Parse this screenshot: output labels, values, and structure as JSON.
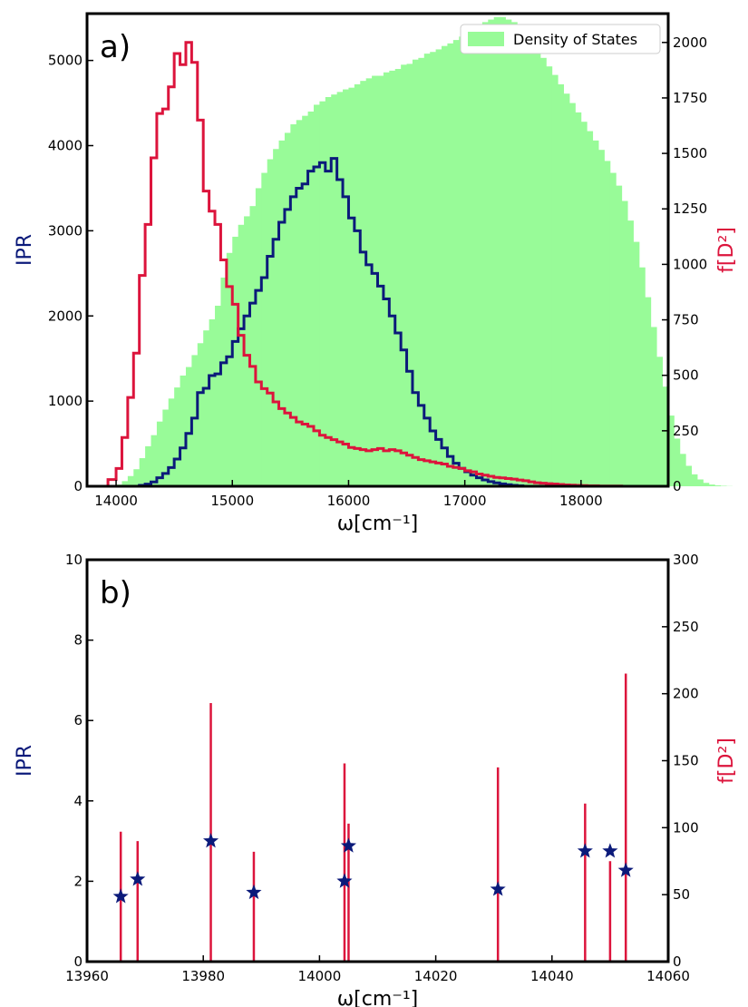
{
  "chart_data": [
    {
      "type": "bar",
      "panel_label": "a)",
      "xlabel": "ω[cm⁻¹]",
      "ylabel_left": "IPR",
      "ylabel_right": "f[D²]",
      "xlim": [
        13750,
        18750
      ],
      "ylim_left": [
        0,
        5550
      ],
      "ylim_right": [
        0,
        2130
      ],
      "xticks": [
        14000,
        15000,
        16000,
        17000,
        18000
      ],
      "yticks_left": [
        0,
        1000,
        2000,
        3000,
        4000,
        5000
      ],
      "yticks_right": [
        0,
        250,
        500,
        750,
        1000,
        1250,
        1500,
        1750,
        2000
      ],
      "legend": {
        "label": "Density of States",
        "position": "top-right"
      },
      "colors": {
        "dos": "#98fb98",
        "ipr": "#0b1a7a",
        "f": "#dc143c"
      },
      "dos_bins_start": 14000,
      "dos_bin_width": 50,
      "dos": [
        20,
        60,
        120,
        200,
        330,
        470,
        600,
        760,
        900,
        1030,
        1160,
        1300,
        1400,
        1540,
        1680,
        1830,
        1960,
        2120,
        2450,
        2740,
        2930,
        3070,
        3170,
        3290,
        3500,
        3680,
        3840,
        3960,
        4060,
        4150,
        4250,
        4300,
        4350,
        4400,
        4480,
        4520,
        4570,
        4600,
        4630,
        4660,
        4680,
        4720,
        4760,
        4790,
        4820,
        4820,
        4860,
        4880,
        4900,
        4950,
        4960,
        5010,
        5030,
        5080,
        5100,
        5130,
        5170,
        5200,
        5240,
        5280,
        5320,
        5380,
        5420,
        5450,
        5480,
        5510,
        5510,
        5480,
        5450,
        5400,
        5330,
        5240,
        5140,
        5030,
        4930,
        4830,
        4720,
        4610,
        4500,
        4390,
        4280,
        4170,
        4060,
        3950,
        3820,
        3680,
        3530,
        3350,
        3120,
        2870,
        2570,
        2220,
        1870,
        1520,
        1170,
        830,
        560,
        380,
        240,
        140,
        80,
        40,
        20,
        10,
        5,
        2,
        0,
        0,
        0,
        0
      ],
      "ipr_steps": [
        [
          14150,
          0
        ],
        [
          14200,
          10
        ],
        [
          14250,
          25
        ],
        [
          14300,
          50
        ],
        [
          14350,
          100
        ],
        [
          14400,
          150
        ],
        [
          14450,
          220
        ],
        [
          14500,
          320
        ],
        [
          14550,
          450
        ],
        [
          14600,
          620
        ],
        [
          14650,
          800
        ],
        [
          14700,
          1100
        ],
        [
          14750,
          1150
        ],
        [
          14800,
          1300
        ],
        [
          14850,
          1320
        ],
        [
          14900,
          1450
        ],
        [
          14950,
          1520
        ],
        [
          15000,
          1700
        ],
        [
          15050,
          1850
        ],
        [
          15100,
          2000
        ],
        [
          15150,
          2150
        ],
        [
          15200,
          2300
        ],
        [
          15250,
          2450
        ],
        [
          15300,
          2700
        ],
        [
          15350,
          2900
        ],
        [
          15400,
          3100
        ],
        [
          15450,
          3250
        ],
        [
          15500,
          3400
        ],
        [
          15550,
          3500
        ],
        [
          15600,
          3550
        ],
        [
          15650,
          3700
        ],
        [
          15700,
          3750
        ],
        [
          15750,
          3800
        ],
        [
          15800,
          3700
        ],
        [
          15850,
          3850
        ],
        [
          15900,
          3600
        ],
        [
          15950,
          3400
        ],
        [
          16000,
          3150
        ],
        [
          16050,
          3000
        ],
        [
          16100,
          2750
        ],
        [
          16150,
          2600
        ],
        [
          16200,
          2500
        ],
        [
          16250,
          2350
        ],
        [
          16300,
          2200
        ],
        [
          16350,
          2000
        ],
        [
          16400,
          1800
        ],
        [
          16450,
          1600
        ],
        [
          16500,
          1350
        ],
        [
          16550,
          1100
        ],
        [
          16600,
          950
        ],
        [
          16650,
          800
        ],
        [
          16700,
          650
        ],
        [
          16750,
          550
        ],
        [
          16800,
          450
        ],
        [
          16850,
          350
        ],
        [
          16900,
          270
        ],
        [
          16950,
          210
        ],
        [
          17000,
          170
        ],
        [
          17050,
          130
        ],
        [
          17100,
          100
        ],
        [
          17150,
          75
        ],
        [
          17200,
          55
        ],
        [
          17250,
          40
        ],
        [
          17300,
          28
        ],
        [
          17350,
          18
        ],
        [
          17400,
          10
        ],
        [
          17450,
          5
        ],
        [
          17500,
          0
        ]
      ],
      "f_steps": [
        [
          13930,
          30
        ],
        [
          14000,
          80
        ],
        [
          14050,
          220
        ],
        [
          14100,
          400
        ],
        [
          14150,
          600
        ],
        [
          14200,
          950
        ],
        [
          14250,
          1180
        ],
        [
          14300,
          1480
        ],
        [
          14350,
          1680
        ],
        [
          14400,
          1700
        ],
        [
          14450,
          1800
        ],
        [
          14500,
          1950
        ],
        [
          14550,
          1900
        ],
        [
          14600,
          2000
        ],
        [
          14650,
          1910
        ],
        [
          14700,
          1650
        ],
        [
          14750,
          1330
        ],
        [
          14800,
          1240
        ],
        [
          14850,
          1180
        ],
        [
          14900,
          1020
        ],
        [
          14950,
          900
        ],
        [
          15000,
          820
        ],
        [
          15050,
          680
        ],
        [
          15100,
          590
        ],
        [
          15150,
          540
        ],
        [
          15200,
          470
        ],
        [
          15250,
          440
        ],
        [
          15300,
          420
        ],
        [
          15350,
          380
        ],
        [
          15400,
          350
        ],
        [
          15450,
          330
        ],
        [
          15500,
          310
        ],
        [
          15550,
          290
        ],
        [
          15600,
          280
        ],
        [
          15650,
          270
        ],
        [
          15700,
          250
        ],
        [
          15750,
          230
        ],
        [
          15800,
          220
        ],
        [
          15850,
          210
        ],
        [
          15900,
          200
        ],
        [
          15950,
          190
        ],
        [
          16000,
          175
        ],
        [
          16050,
          170
        ],
        [
          16100,
          165
        ],
        [
          16150,
          160
        ],
        [
          16200,
          165
        ],
        [
          16250,
          170
        ],
        [
          16300,
          160
        ],
        [
          16350,
          165
        ],
        [
          16400,
          160
        ],
        [
          16450,
          150
        ],
        [
          16500,
          140
        ],
        [
          16550,
          130
        ],
        [
          16600,
          120
        ],
        [
          16650,
          115
        ],
        [
          16700,
          110
        ],
        [
          16750,
          105
        ],
        [
          16800,
          100
        ],
        [
          16850,
          90
        ],
        [
          16900,
          85
        ],
        [
          16950,
          80
        ],
        [
          17000,
          70
        ],
        [
          17050,
          65
        ],
        [
          17100,
          55
        ],
        [
          17150,
          50
        ],
        [
          17200,
          45
        ],
        [
          17250,
          40
        ],
        [
          17300,
          38
        ],
        [
          17350,
          35
        ],
        [
          17400,
          32
        ],
        [
          17450,
          28
        ],
        [
          17500,
          25
        ],
        [
          17550,
          20
        ],
        [
          17600,
          16
        ],
        [
          17650,
          14
        ],
        [
          17700,
          12
        ],
        [
          17750,
          10
        ],
        [
          17800,
          8
        ],
        [
          17850,
          6
        ],
        [
          17900,
          5
        ],
        [
          17950,
          4
        ],
        [
          18000,
          3
        ],
        [
          18050,
          2
        ],
        [
          18100,
          2
        ],
        [
          18150,
          1
        ],
        [
          18200,
          1
        ],
        [
          18250,
          1
        ],
        [
          18300,
          1
        ],
        [
          18350,
          0
        ],
        [
          18400,
          0
        ],
        [
          18450,
          0
        ],
        [
          18500,
          0
        ],
        [
          18550,
          0
        ],
        [
          18600,
          0
        ]
      ]
    },
    {
      "type": "scatter",
      "panel_label": "b)",
      "xlabel": "ω[cm⁻¹]",
      "ylabel_left": "IPR",
      "ylabel_right": "f[D²]",
      "xlim": [
        13960,
        14060
      ],
      "ylim_left": [
        0,
        10
      ],
      "ylim_right": [
        0,
        300
      ],
      "xticks": [
        13960,
        13980,
        14000,
        14020,
        14040,
        14060
      ],
      "yticks_left": [
        0,
        2,
        4,
        6,
        8,
        10
      ],
      "yticks_right": [
        0,
        50,
        100,
        150,
        200,
        250,
        300
      ],
      "colors": {
        "ipr": "#0b1a7a",
        "f": "#dc143c"
      },
      "ipr_points": [
        [
          13965.8,
          1.62
        ],
        [
          13968.7,
          2.05
        ],
        [
          13981.3,
          3.0
        ],
        [
          13988.7,
          1.72
        ],
        [
          14004.3,
          2.0
        ],
        [
          14005.0,
          2.88
        ],
        [
          14030.7,
          1.8
        ],
        [
          14045.7,
          2.75
        ],
        [
          14050.0,
          2.75
        ],
        [
          14052.7,
          2.27
        ]
      ],
      "f_sticks": [
        [
          13965.8,
          97
        ],
        [
          13968.7,
          90
        ],
        [
          13981.3,
          193
        ],
        [
          13988.7,
          82
        ],
        [
          14004.3,
          148
        ],
        [
          14005.0,
          103
        ],
        [
          14030.7,
          145
        ],
        [
          14045.7,
          118
        ],
        [
          14050.0,
          75
        ],
        [
          14052.7,
          215
        ]
      ]
    }
  ]
}
